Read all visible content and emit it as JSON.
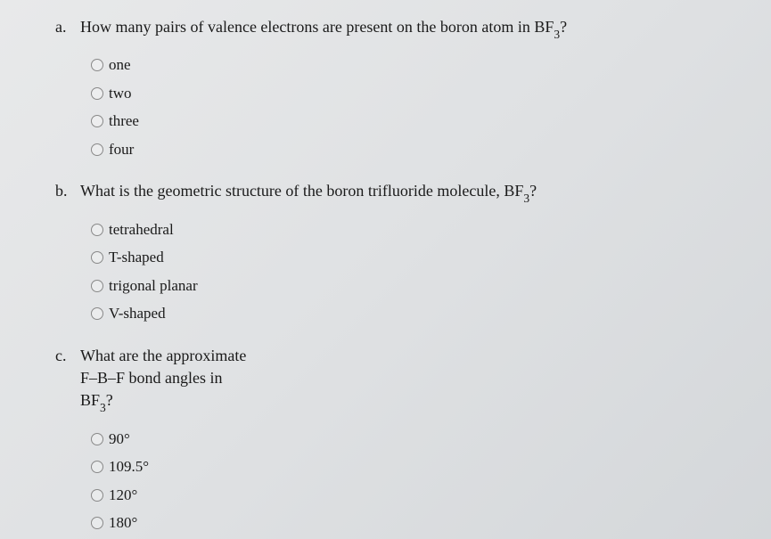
{
  "questions": [
    {
      "letter": "a.",
      "text_parts": [
        "How many pairs of valence electrons are present on the boron atom in ",
        "BF",
        "3",
        "?"
      ],
      "options": [
        "one",
        "two",
        "three",
        "four"
      ]
    },
    {
      "letter": "b.",
      "text_parts": [
        "What is the geometric structure of the boron trifluoride molecule, ",
        "BF",
        "3",
        "?"
      ],
      "options": [
        "tetrahedral",
        "T-shaped",
        "trigonal planar",
        "V-shaped"
      ]
    },
    {
      "letter": "c.",
      "text_line1": "What are the approximate",
      "text_line2_parts": [
        "F–B–F",
        " bond angles in"
      ],
      "text_line3_parts": [
        "BF",
        "3",
        "?"
      ],
      "options": [
        "90°",
        "109.5°",
        "120°",
        "180°"
      ]
    }
  ]
}
